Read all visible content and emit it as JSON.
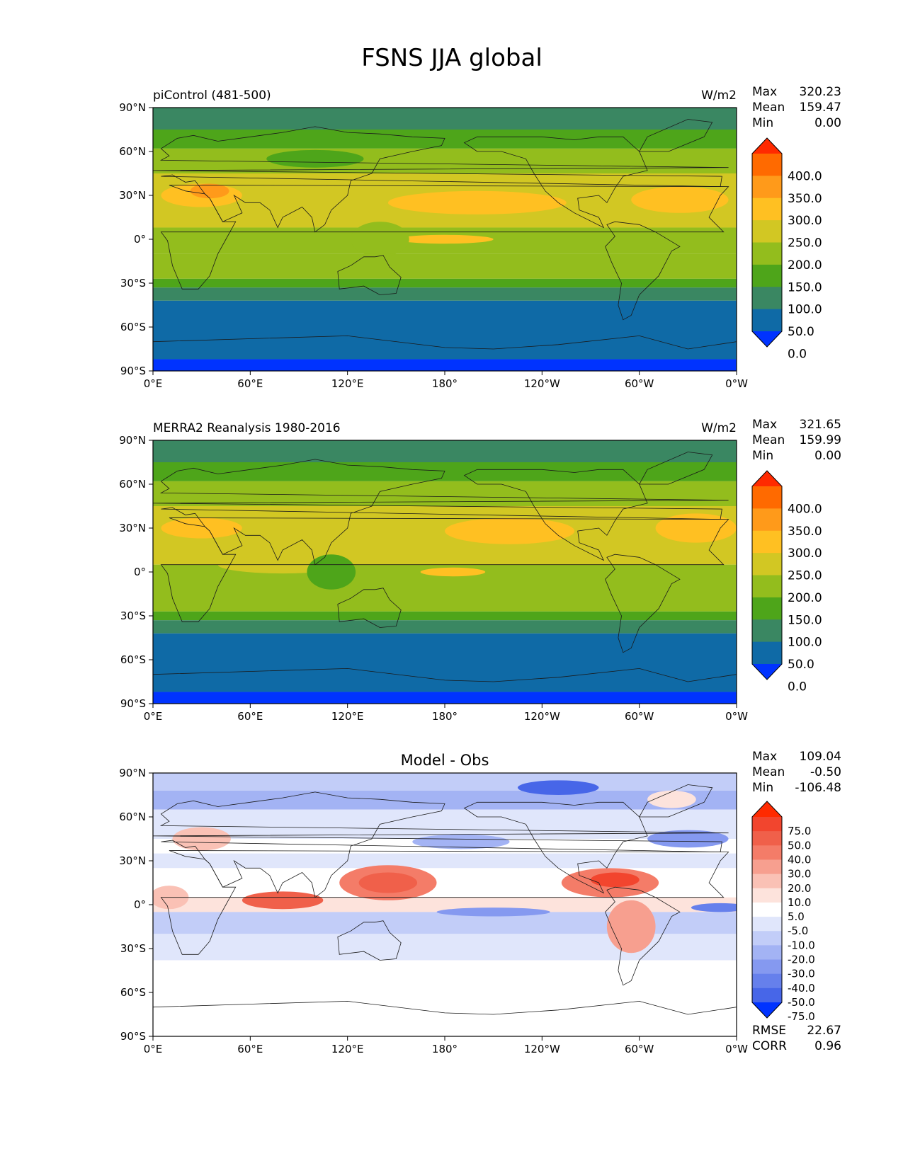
{
  "figure": {
    "title": "FSNS JJA global"
  },
  "chart_data": [
    {
      "type": "heatmap",
      "title_left": "piControl (481-500)",
      "units": "W/m2",
      "stats": {
        "max_label": "Max",
        "max": "320.23",
        "mean_label": "Mean",
        "mean": "159.47",
        "min_label": "Min",
        "min": "0.00"
      },
      "xlim": [
        0,
        360
      ],
      "ylim": [
        -90,
        90
      ],
      "xticks": [
        "0°E",
        "60°E",
        "120°E",
        "180°",
        "120°W",
        "60°W",
        "0°W"
      ],
      "yticks": [
        "90°N",
        "60°N",
        "30°N",
        "0°",
        "30°S",
        "60°S",
        "90°S"
      ],
      "colorbar": {
        "labels": [
          "400.0",
          "350.0",
          "300.0",
          "250.0",
          "200.0",
          "150.0",
          "100.0",
          "50.0",
          "0.0"
        ],
        "colors": [
          "#ff2a00",
          "#ff6a00",
          "#ff9a1a",
          "#ffc022",
          "#d2c723",
          "#93bd1d",
          "#4ea51a",
          "#3a8762",
          "#0f6aa6",
          "#0033ff"
        ]
      },
      "zonal_bands": [
        {
          "from": 90,
          "to": 75,
          "color": "#3a8762"
        },
        {
          "from": 75,
          "to": 62,
          "color": "#4ea51a"
        },
        {
          "from": 62,
          "to": 45,
          "color": "#93bd1d"
        },
        {
          "from": 45,
          "to": 8,
          "color": "#d2c723"
        },
        {
          "from": 8,
          "to": -10,
          "color": "#93bd1d"
        },
        {
          "from": -10,
          "to": -27,
          "color": "#93bd1d"
        },
        {
          "from": -27,
          "to": -33,
          "color": "#4ea51a"
        },
        {
          "from": -33,
          "to": -42,
          "color": "#3a8762"
        },
        {
          "from": -42,
          "to": -82,
          "color": "#0f6aa6"
        },
        {
          "from": -82,
          "to": -90,
          "color": "#0033ff"
        }
      ],
      "patches": [
        {
          "lon": 200,
          "lat": 25,
          "rx": 55,
          "ry": 8,
          "color": "#ffc022"
        },
        {
          "lon": 325,
          "lat": 27,
          "rx": 30,
          "ry": 9,
          "color": "#ffc022"
        },
        {
          "lon": 30,
          "lat": 30,
          "rx": 25,
          "ry": 8,
          "color": "#ffc022"
        },
        {
          "lon": 35,
          "lat": 33,
          "rx": 12,
          "ry": 5,
          "color": "#ff9a1a"
        },
        {
          "lon": 180,
          "lat": 0,
          "rx": 30,
          "ry": 3,
          "color": "#ffc022"
        },
        {
          "lon": 140,
          "lat": 0,
          "rx": 18,
          "ry": 12,
          "color": "#93bd1d"
        },
        {
          "lon": 100,
          "lat": 55,
          "rx": 30,
          "ry": 6,
          "color": "#4ea51a"
        }
      ]
    },
    {
      "type": "heatmap",
      "title_left": "MERRA2 Reanalysis 1980-2016",
      "units": "W/m2",
      "stats": {
        "max_label": "Max",
        "max": "321.65",
        "mean_label": "Mean",
        "mean": "159.99",
        "min_label": "Min",
        "min": "0.00"
      },
      "xlim": [
        0,
        360
      ],
      "ylim": [
        -90,
        90
      ],
      "xticks": [
        "0°E",
        "60°E",
        "120°E",
        "180°",
        "120°W",
        "60°W",
        "0°W"
      ],
      "yticks": [
        "90°N",
        "60°N",
        "30°N",
        "0°",
        "30°S",
        "60°S",
        "90°S"
      ],
      "colorbar": {
        "labels": [
          "400.0",
          "350.0",
          "300.0",
          "250.0",
          "200.0",
          "150.0",
          "100.0",
          "50.0",
          "0.0"
        ],
        "colors": [
          "#ff2a00",
          "#ff6a00",
          "#ff9a1a",
          "#ffc022",
          "#d2c723",
          "#93bd1d",
          "#4ea51a",
          "#3a8762",
          "#0f6aa6",
          "#0033ff"
        ]
      },
      "zonal_bands": [
        {
          "from": 90,
          "to": 75,
          "color": "#3a8762"
        },
        {
          "from": 75,
          "to": 62,
          "color": "#4ea51a"
        },
        {
          "from": 62,
          "to": 45,
          "color": "#93bd1d"
        },
        {
          "from": 45,
          "to": 5,
          "color": "#d2c723"
        },
        {
          "from": 5,
          "to": -27,
          "color": "#93bd1d"
        },
        {
          "from": -27,
          "to": -33,
          "color": "#4ea51a"
        },
        {
          "from": -33,
          "to": -42,
          "color": "#3a8762"
        },
        {
          "from": -42,
          "to": -82,
          "color": "#0f6aa6"
        },
        {
          "from": -82,
          "to": -90,
          "color": "#0033ff"
        }
      ],
      "patches": [
        {
          "lon": 220,
          "lat": 28,
          "rx": 40,
          "ry": 9,
          "color": "#ffc022"
        },
        {
          "lon": 335,
          "lat": 30,
          "rx": 25,
          "ry": 10,
          "color": "#ffc022"
        },
        {
          "lon": 30,
          "lat": 30,
          "rx": 25,
          "ry": 7,
          "color": "#ffc022"
        },
        {
          "lon": 185,
          "lat": 0,
          "rx": 20,
          "ry": 3,
          "color": "#ffc022"
        },
        {
          "lon": 80,
          "lat": 5,
          "rx": 40,
          "ry": 6,
          "color": "#d2c723"
        },
        {
          "lon": 110,
          "lat": 0,
          "rx": 15,
          "ry": 12,
          "color": "#4ea51a"
        }
      ]
    },
    {
      "type": "heatmap",
      "title": "Model - Obs",
      "stats": {
        "max_label": "Max",
        "max": "109.04",
        "mean_label": "Mean",
        "mean": "-0.50",
        "min_label": "Min",
        "min": "-106.48"
      },
      "metrics": {
        "rmse_label": "RMSE",
        "rmse": "22.67",
        "corr_label": "CORR",
        "corr": "0.96"
      },
      "xlim": [
        0,
        360
      ],
      "ylim": [
        -90,
        90
      ],
      "xticks": [
        "0°E",
        "60°E",
        "120°E",
        "180°",
        "120°W",
        "60°W",
        "0°W"
      ],
      "yticks": [
        "90°N",
        "60°N",
        "30°N",
        "0°",
        "30°S",
        "60°S",
        "90°S"
      ],
      "colorbar": {
        "labels": [
          "75.0",
          "50.0",
          "40.0",
          "30.0",
          "20.0",
          "10.0",
          "5.0",
          "-5.0",
          "-10.0",
          "-20.0",
          "-30.0",
          "-40.0",
          "-50.0",
          "-75.0"
        ],
        "colors": [
          "#ff2a00",
          "#f2452e",
          "#f0604a",
          "#f47c68",
          "#f79f8f",
          "#fac1b5",
          "#fde3dc",
          "#ffffff",
          "#e0e6fb",
          "#c2cdf8",
          "#a3b3f4",
          "#8599f0",
          "#6680ec",
          "#4766e8",
          "#0033ff"
        ]
      },
      "zonal_bands": [
        {
          "from": 90,
          "to": 78,
          "color": "#c2cdf8"
        },
        {
          "from": 78,
          "to": 65,
          "color": "#a3b3f4"
        },
        {
          "from": 65,
          "to": 45,
          "color": "#e0e6fb"
        },
        {
          "from": 45,
          "to": 35,
          "color": "#ffffff"
        },
        {
          "from": 35,
          "to": 25,
          "color": "#e0e6fb"
        },
        {
          "from": 25,
          "to": 5,
          "color": "#ffffff"
        },
        {
          "from": 5,
          "to": -5,
          "color": "#fde3dc"
        },
        {
          "from": -5,
          "to": -20,
          "color": "#c2cdf8"
        },
        {
          "from": -20,
          "to": -38,
          "color": "#e0e6fb"
        },
        {
          "from": -38,
          "to": -90,
          "color": "#ffffff"
        }
      ],
      "patches": [
        {
          "lon": 145,
          "lat": 15,
          "rx": 30,
          "ry": 12,
          "color": "#f47c68"
        },
        {
          "lon": 145,
          "lat": 15,
          "rx": 18,
          "ry": 7,
          "color": "#f0604a"
        },
        {
          "lon": 80,
          "lat": 3,
          "rx": 25,
          "ry": 6,
          "color": "#f0604a"
        },
        {
          "lon": 282,
          "lat": 15,
          "rx": 30,
          "ry": 10,
          "color": "#f47c68"
        },
        {
          "lon": 285,
          "lat": 17,
          "rx": 15,
          "ry": 5,
          "color": "#f2452e"
        },
        {
          "lon": 295,
          "lat": -15,
          "rx": 15,
          "ry": 18,
          "color": "#f79f8f"
        },
        {
          "lon": 30,
          "lat": 45,
          "rx": 18,
          "ry": 8,
          "color": "#fac1b5"
        },
        {
          "lon": 10,
          "lat": 5,
          "rx": 12,
          "ry": 8,
          "color": "#fac1b5"
        },
        {
          "lon": 210,
          "lat": -5,
          "rx": 35,
          "ry": 3,
          "color": "#8599f0"
        },
        {
          "lon": 350,
          "lat": -2,
          "rx": 18,
          "ry": 3,
          "color": "#6680ec"
        },
        {
          "lon": 190,
          "lat": 43,
          "rx": 30,
          "ry": 5,
          "color": "#a3b3f4"
        },
        {
          "lon": 330,
          "lat": 45,
          "rx": 25,
          "ry": 6,
          "color": "#8599f0"
        },
        {
          "lon": 250,
          "lat": 80,
          "rx": 25,
          "ry": 5,
          "color": "#4766e8"
        },
        {
          "lon": 320,
          "lat": 72,
          "rx": 15,
          "ry": 6,
          "color": "#fde3dc"
        }
      ]
    }
  ]
}
